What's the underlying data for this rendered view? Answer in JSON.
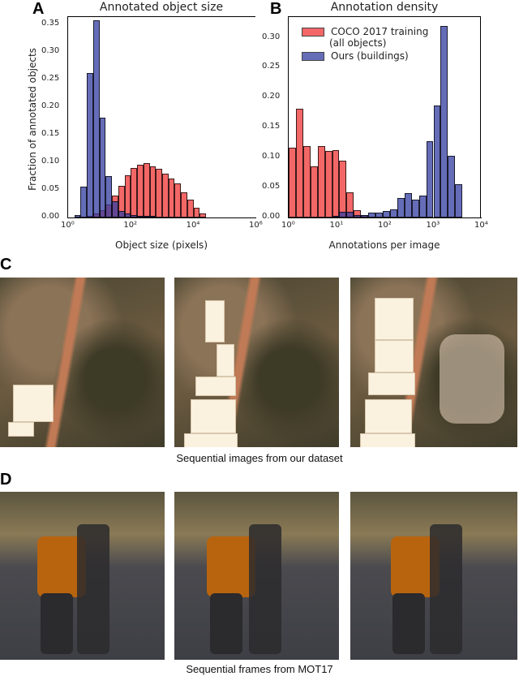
{
  "panels": {
    "a": {
      "letter": "A",
      "title": "Annotated object size"
    },
    "b": {
      "letter": "B",
      "title": "Annotation density"
    },
    "c": {
      "letter": "C",
      "caption": "Sequential images from our dataset"
    },
    "d": {
      "letter": "D",
      "caption": "Sequential frames from MOT17"
    }
  },
  "legend": {
    "coco": "COCO 2017 training",
    "coco_sub": "(all objects)",
    "ours": "Ours (buildings)"
  },
  "colors": {
    "coco": "#f04646",
    "ours": "#323ca0"
  },
  "axisA": {
    "ylabel": "Fraction of annotated objects",
    "xlabel": "Object size (pixels)",
    "yticks": [
      "0.00",
      "0.05",
      "0.10",
      "0.15",
      "0.20",
      "0.25",
      "0.30",
      "0.35"
    ],
    "xticks": [
      "10⁰",
      "10²",
      "10⁴",
      "10⁶"
    ]
  },
  "axisB": {
    "xlabel": "Annotations per image",
    "yticks": [
      "0.00",
      "0.05",
      "0.10",
      "0.15",
      "0.20",
      "0.25",
      "0.30"
    ],
    "xticks": [
      "10⁰",
      "10¹",
      "10²",
      "10³",
      "10⁴"
    ]
  },
  "chart_data": [
    {
      "type": "bar",
      "title": "Annotated object size",
      "xlabel": "Object size (pixels)",
      "ylabel": "Fraction of annotated objects",
      "xscale": "log",
      "xlim": [
        1,
        1000000
      ],
      "ylim": [
        0,
        0.35
      ],
      "legend_position": "upper right (shared, shown in B)",
      "bin_edges_log10": [
        0.2,
        0.4,
        0.6,
        0.8,
        1.0,
        1.2,
        1.4,
        1.6,
        1.8,
        2.0,
        2.2,
        2.4,
        2.6,
        2.8,
        3.0,
        3.2,
        3.4,
        3.6,
        3.8,
        4.0,
        4.2,
        4.4,
        4.6,
        4.8,
        5.0,
        5.2,
        5.4,
        5.6,
        5.8
      ],
      "series": [
        {
          "name": "Ours (buildings)",
          "color": "#323ca0",
          "values": [
            0.004,
            0.056,
            0.262,
            0.358,
            0.181,
            0.075,
            0.03,
            0.012,
            0.008,
            0.004,
            0.002,
            0.001,
            0.001,
            0,
            0,
            0,
            0,
            0,
            0,
            0,
            0,
            0,
            0,
            0,
            0,
            0,
            0,
            0
          ]
        },
        {
          "name": "COCO 2017 training (all objects)",
          "color": "#f04646",
          "values": [
            0,
            0,
            0.002,
            0.007,
            0.014,
            0.024,
            0.04,
            0.058,
            0.077,
            0.09,
            0.096,
            0.098,
            0.093,
            0.088,
            0.079,
            0.071,
            0.062,
            0.046,
            0.033,
            0.017,
            0.007,
            0,
            0,
            0,
            0,
            0,
            0,
            0
          ]
        }
      ]
    },
    {
      "type": "bar",
      "title": "Annotation density",
      "xlabel": "Annotations per image",
      "ylabel": "",
      "xscale": "log",
      "xlim": [
        1,
        10000
      ],
      "ylim": [
        0,
        0.32
      ],
      "legend": [
        "COCO 2017 training (all objects)",
        "Ours (buildings)"
      ],
      "legend_position": "upper left",
      "bin_edges_log10": [
        0.0,
        0.15,
        0.3,
        0.45,
        0.6,
        0.75,
        0.9,
        1.05,
        1.2,
        1.35,
        1.5,
        1.65,
        1.8,
        1.95,
        2.1,
        2.25,
        2.4,
        2.55,
        2.7,
        2.85,
        3.0,
        3.15,
        3.3,
        3.45,
        3.6,
        3.75,
        3.9
      ],
      "series": [
        {
          "name": "COCO 2017 training (all objects)",
          "color": "#f04646",
          "values": [
            0.117,
            0.182,
            0.119,
            0.085,
            0.119,
            0.111,
            0.112,
            0.095,
            0.042,
            0.012,
            0.004,
            0,
            0,
            0,
            0,
            0,
            0,
            0,
            0,
            0,
            0,
            0,
            0,
            0,
            0,
            0
          ]
        },
        {
          "name": "Ours (buildings)",
          "color": "#323ca0",
          "values": [
            0,
            0,
            0,
            0,
            0,
            0,
            0.002,
            0.009,
            0.009,
            0.004,
            0.004,
            0.008,
            0.008,
            0.011,
            0.013,
            0.033,
            0.04,
            0.03,
            0.037,
            0.128,
            0.187,
            0.32,
            0.103,
            0.055,
            0,
            0
          ]
        }
      ]
    }
  ]
}
